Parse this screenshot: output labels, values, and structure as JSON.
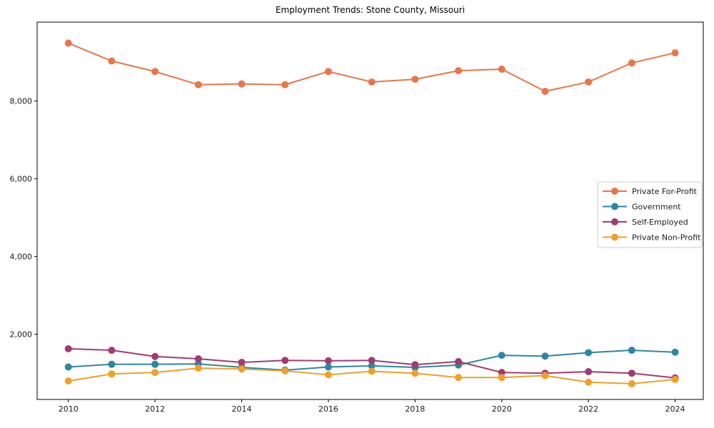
{
  "chart_data": {
    "type": "line",
    "title": "Employment Trends: Stone County, Missouri",
    "xlabel": "",
    "ylabel": "",
    "grid": false,
    "legend_position": "center right",
    "x": [
      2010,
      2011,
      2012,
      2013,
      2014,
      2015,
      2016,
      2017,
      2018,
      2019,
      2020,
      2021,
      2022,
      2023,
      2024
    ],
    "xticks": [
      2010,
      2012,
      2014,
      2016,
      2018,
      2020,
      2022,
      2024
    ],
    "xtick_labels": [
      "2010",
      "2012",
      "2014",
      "2016",
      "2018",
      "2020",
      "2022",
      "2024"
    ],
    "yticks": [
      2000,
      4000,
      6000,
      8000
    ],
    "ytick_labels": [
      "2,000",
      "4,000",
      "6,000",
      "8,000"
    ],
    "xlim": [
      2009.28,
      2024.65
    ],
    "ylim": [
      325,
      10030
    ],
    "series": [
      {
        "name": "Private For-Profit",
        "color": "#e87648",
        "values": [
          9490,
          9030,
          8760,
          8420,
          8440,
          8420,
          8760,
          8490,
          8560,
          8780,
          8820,
          8250,
          8490,
          8980,
          9240
        ]
      },
      {
        "name": "Government",
        "color": "#2b87a5",
        "values": [
          1160,
          1230,
          1230,
          1240,
          1150,
          1080,
          1160,
          1190,
          1150,
          1210,
          1460,
          1440,
          1530,
          1590,
          1540
        ]
      },
      {
        "name": "Self-Employed",
        "color": "#a23b72",
        "values": [
          1630,
          1590,
          1430,
          1370,
          1280,
          1330,
          1320,
          1330,
          1220,
          1300,
          1020,
          1000,
          1040,
          1000,
          880
        ]
      },
      {
        "name": "Private Non-Profit",
        "color": "#f0a028",
        "values": [
          800,
          980,
          1020,
          1130,
          1110,
          1060,
          960,
          1050,
          1000,
          890,
          890,
          940,
          770,
          730,
          840
        ]
      }
    ],
    "axis_color": "#000000",
    "tick_label_color": "#1a1a1a",
    "legend_border_color": "#cccccc",
    "background_color": "#ffffff"
  }
}
